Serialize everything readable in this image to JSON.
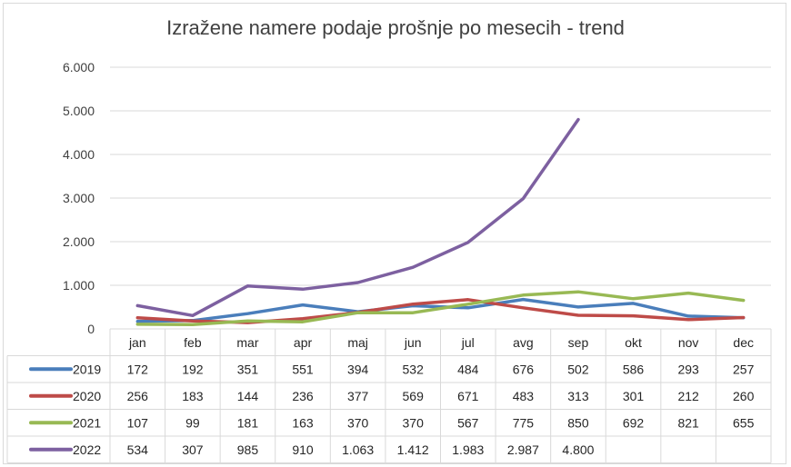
{
  "chart_data": {
    "type": "line",
    "title": "Izražene namere podaje prošnje po mesecih - trend",
    "categories": [
      "jan",
      "feb",
      "mar",
      "apr",
      "maj",
      "jun",
      "jul",
      "avg",
      "sep",
      "okt",
      "nov",
      "dec"
    ],
    "y_ticks": [
      "0",
      "1.000",
      "2.000",
      "3.000",
      "4.000",
      "5.000",
      "6.000"
    ],
    "ylim": [
      0,
      6000
    ],
    "grid": true,
    "legend": "data-table",
    "series": [
      {
        "name": "2019",
        "color": "#4a7ebb",
        "values": [
          172,
          192,
          351,
          551,
          394,
          532,
          484,
          676,
          502,
          586,
          293,
          257
        ],
        "labels": [
          "172",
          "192",
          "351",
          "551",
          "394",
          "532",
          "484",
          "676",
          "502",
          "586",
          "293",
          "257"
        ]
      },
      {
        "name": "2020",
        "color": "#be4b48",
        "values": [
          256,
          183,
          144,
          236,
          377,
          569,
          671,
          483,
          313,
          301,
          212,
          260
        ],
        "labels": [
          "256",
          "183",
          "144",
          "236",
          "377",
          "569",
          "671",
          "483",
          "313",
          "301",
          "212",
          "260"
        ]
      },
      {
        "name": "2021",
        "color": "#98b954",
        "values": [
          107,
          99,
          181,
          163,
          370,
          370,
          567,
          775,
          850,
          692,
          821,
          655
        ],
        "labels": [
          "107",
          "99",
          "181",
          "163",
          "370",
          "370",
          "567",
          "775",
          "850",
          "692",
          "821",
          "655"
        ]
      },
      {
        "name": "2022",
        "color": "#7d60a0",
        "values": [
          534,
          307,
          985,
          910,
          1063,
          1412,
          1983,
          2987,
          4800,
          null,
          null,
          null
        ],
        "labels": [
          "534",
          "307",
          "985",
          "910",
          "1.063",
          "1.412",
          "1.983",
          "2.987",
          "4.800",
          "",
          "",
          ""
        ]
      }
    ]
  }
}
